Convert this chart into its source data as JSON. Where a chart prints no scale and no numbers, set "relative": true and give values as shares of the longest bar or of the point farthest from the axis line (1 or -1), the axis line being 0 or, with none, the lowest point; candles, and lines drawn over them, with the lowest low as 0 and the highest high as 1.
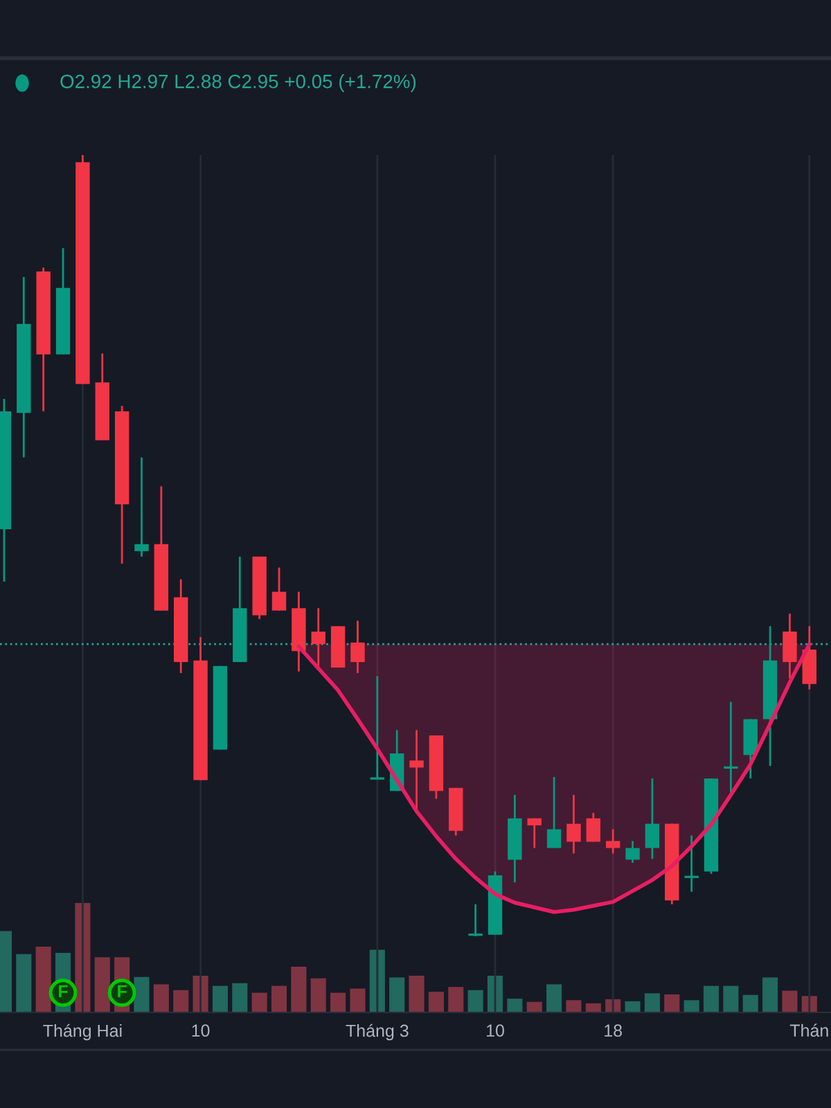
{
  "chart_data": [
    {
      "type": "candlestick",
      "relative": true,
      "categories": [
        null,
        null,
        null,
        null,
        "Tháng Hai",
        null,
        null,
        null,
        null,
        null,
        "10",
        null,
        null,
        null,
        null,
        null,
        null,
        null,
        null,
        "Tháng 3",
        null,
        null,
        null,
        null,
        null,
        "10",
        null,
        null,
        null,
        null,
        null,
        "18",
        null,
        null,
        null,
        null,
        null,
        null,
        null,
        null,
        null,
        "Thán"
      ],
      "ohlc": [
        [
          0.521,
          0.688,
          0.454,
          0.672
        ],
        [
          0.67,
          0.844,
          0.613,
          0.784
        ],
        [
          0.851,
          0.856,
          0.672,
          0.745
        ],
        [
          0.745,
          0.881,
          0.745,
          0.83
        ],
        [
          0.991,
          1,
          0.707,
          0.707
        ],
        [
          0.709,
          0.746,
          0.635,
          0.635
        ],
        [
          0.672,
          0.679,
          0.477,
          0.553
        ],
        [
          0.493,
          0.613,
          0.486,
          0.502
        ],
        [
          0.502,
          0.576,
          0.417,
          0.417
        ],
        [
          0.434,
          0.457,
          0.337,
          0.351
        ],
        [
          0.353,
          0.383,
          0.2,
          0.2
        ],
        [
          0.239,
          0.346,
          0.239,
          0.346
        ],
        [
          0.351,
          0.486,
          0.351,
          0.42
        ],
        [
          0.486,
          0.486,
          0.406,
          0.411
        ],
        [
          0.441,
          0.472,
          0.417,
          0.417
        ],
        [
          0.42,
          0.441,
          0.339,
          0.365
        ],
        [
          0.39,
          0.42,
          0.346,
          0.374
        ],
        [
          0.397,
          0.397,
          0.344,
          0.344
        ],
        [
          0.376,
          0.404,
          0.337,
          0.351
        ],
        [
          0.202,
          0.333,
          0.202,
          0.202
        ],
        [
          0.186,
          0.264,
          0.186,
          0.234
        ],
        [
          0.225,
          0.264,
          0.158,
          0.216
        ],
        [
          0.257,
          0.257,
          0.176,
          0.186
        ],
        [
          0.19,
          0.19,
          0.129,
          0.135
        ],
        [
          0.002,
          0.041,
          0,
          0.002
        ],
        [
          0.002,
          0.083,
          0.002,
          0.078
        ],
        [
          0.098,
          0.181,
          0.069,
          0.151
        ],
        [
          0.151,
          0.151,
          0.113,
          0.142
        ],
        [
          0.113,
          0.204,
          0.113,
          0.137
        ],
        [
          0.144,
          0.181,
          0.106,
          0.121
        ],
        [
          0.151,
          0.158,
          0.121,
          0.121
        ],
        [
          0.122,
          0.137,
          0.106,
          0.113
        ],
        [
          0.098,
          0.122,
          0.094,
          0.113
        ],
        [
          0.113,
          0.202,
          0.099,
          0.144
        ],
        [
          0.144,
          0.144,
          0.041,
          0.046
        ],
        [
          0.076,
          0.129,
          0.057,
          0.076
        ],
        [
          0.083,
          0.202,
          0.08,
          0.202
        ],
        [
          0.216,
          0.3,
          0.184,
          0.216
        ],
        [
          0.232,
          0.278,
          0.202,
          0.278
        ],
        [
          0.278,
          0.397,
          0.218,
          0.353
        ],
        [
          0.39,
          0.413,
          0.33,
          0.351
        ],
        [
          0.367,
          0.397,
          0.316,
          0.323
        ]
      ],
      "colors": [
        "#089981",
        "#089981",
        "#f23645",
        "#089981",
        "#f23645",
        "#f23645",
        "#f23645",
        "#089981",
        "#f23645",
        "#f23645",
        "#f23645",
        "#089981",
        "#089981",
        "#f23645",
        "#f23645",
        "#f23645",
        "#f23645",
        "#f23645",
        "#f23645",
        "#089981",
        "#089981",
        "#f23645",
        "#f23645",
        "#f23645",
        "#089981",
        "#089981",
        "#089981",
        "#f23645",
        "#089981",
        "#f23645",
        "#f23645",
        "#f23645",
        "#089981",
        "#089981",
        "#f23645",
        "#089981",
        "#089981",
        "#089981",
        "#089981",
        "#089981",
        "#f23645",
        "#f23645"
      ],
      "series": [
        {
          "type": "line",
          "color": "#e91e63",
          "values": [
            null,
            null,
            null,
            null,
            null,
            null,
            null,
            null,
            null,
            null,
            null,
            null,
            null,
            null,
            null,
            0.371,
            0.343,
            0.315,
            0.278,
            0.24,
            0.2,
            0.16,
            0.128,
            0.099,
            0.075,
            0.054,
            0.043,
            0.037,
            0.031,
            0.034,
            0.039,
            0.044,
            0.058,
            0.072,
            0.09,
            0.115,
            0.143,
            0.181,
            0.22,
            0.272,
            0.325,
            0.374
          ],
          "lower": [
            null,
            null,
            null,
            null,
            null,
            null,
            null,
            null,
            null,
            null,
            null,
            null,
            null,
            null,
            null,
            0.371,
            0.343,
            0.315,
            0.278,
            0.24,
            0.2,
            0.16,
            0.128,
            0.099,
            0.075,
            0.054,
            0.043,
            0.037,
            0.031,
            0.034,
            0.039,
            0.044,
            0.058,
            0.072,
            0.09,
            0.115,
            0.143,
            0.181,
            0.22,
            0.272,
            0.325,
            0.374
          ],
          "upper": [
            null,
            null,
            null,
            null,
            null,
            null,
            null,
            null,
            null,
            null,
            null,
            null,
            null,
            null,
            null,
            0.374,
            0.374,
            0.374,
            0.374,
            0.374,
            0.374,
            0.374,
            0.374,
            0.374,
            0.374,
            0.374,
            0.374,
            0.374,
            0.374,
            0.374,
            0.374,
            0.374,
            0.374,
            0.374,
            0.374,
            0.374,
            0.374,
            0.374,
            0.374,
            0.374,
            0.374,
            0.374
          ]
        }
      ],
      "ref_lines": [
        {
          "axis": "y",
          "value": 0.374,
          "color": "#26a69a",
          "line_style": "dotted"
        }
      ],
      "annotations": [
        "O2.92 H2.97 L2.88 C2.95 +0.05 (+1.72%)"
      ],
      "grid": "x"
    },
    {
      "type": "bar",
      "relative": true,
      "categories": [
        null,
        null,
        null,
        null,
        null,
        null,
        null,
        null,
        null,
        null,
        null,
        null,
        null,
        null,
        null,
        null,
        null,
        null,
        null,
        null,
        null,
        null,
        null,
        null,
        null,
        null,
        null,
        null,
        null,
        null,
        null,
        null,
        null,
        null,
        null,
        null,
        null,
        null,
        null,
        null,
        null,
        null
      ],
      "values": [
        0.743,
        0.534,
        0.602,
        0.544,
        1,
        0.505,
        0.505,
        0.325,
        0.257,
        0.204,
        0.335,
        0.243,
        0.267,
        0.18,
        0.243,
        0.417,
        0.311,
        0.18,
        0.218,
        0.573,
        0.32,
        0.335,
        0.189,
        0.233,
        0.204,
        0.335,
        0.126,
        0.097,
        0.257,
        0.112,
        0.083,
        0.121,
        0.102,
        0.175,
        0.165,
        0.112,
        0.243,
        0.243,
        0.16,
        0.32,
        0.199,
        0.15
      ],
      "colors": [
        "#22695f",
        "#22695f",
        "#7f3441",
        "#22695f",
        "#7f3441",
        "#7f3441",
        "#7f3441",
        "#22695f",
        "#7f3441",
        "#7f3441",
        "#7f3441",
        "#22695f",
        "#22695f",
        "#7f3441",
        "#7f3441",
        "#7f3441",
        "#7f3441",
        "#7f3441",
        "#7f3441",
        "#22695f",
        "#22695f",
        "#7f3441",
        "#7f3441",
        "#7f3441",
        "#22695f",
        "#22695f",
        "#22695f",
        "#7f3441",
        "#22695f",
        "#7f3441",
        "#7f3441",
        "#7f3441",
        "#22695f",
        "#22695f",
        "#7f3441",
        "#22695f",
        "#22695f",
        "#22695f",
        "#22695f",
        "#22695f",
        "#7f3441",
        "#7f3441"
      ],
      "annotations": [
        "F",
        "F"
      ]
    }
  ]
}
